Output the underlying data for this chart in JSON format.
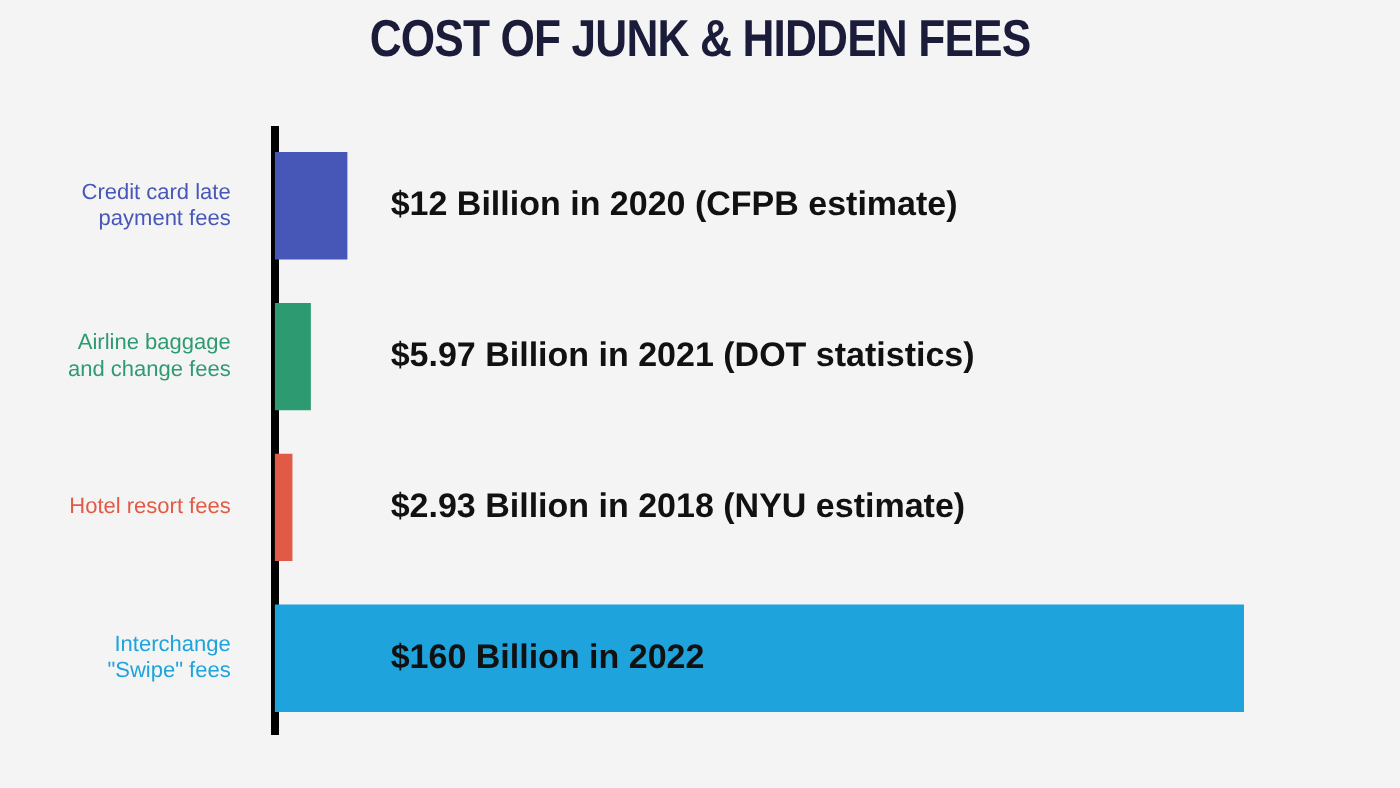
{
  "chart_data": {
    "type": "bar",
    "orientation": "horizontal",
    "title": "COST OF JUNK & HIDDEN FEES",
    "categories": [
      "Credit card late payment fees",
      "Airline baggage and change fees",
      "Hotel resort fees",
      "Interchange \"Swipe\" fees"
    ],
    "values": [
      12,
      5.97,
      2.93,
      160
    ],
    "colors": [
      "#4657b8",
      "#2e9a72",
      "#e05a45",
      "#1ea3dc"
    ],
    "value_labels": [
      "$12 Billion in 2020 (CFPB estimate)",
      "$5.97 Billion in 2021 (DOT statistics)",
      "$2.93 Billion in 2018 (NYU estimate)",
      "$160 Billion in 2022"
    ],
    "legend": false
  }
}
